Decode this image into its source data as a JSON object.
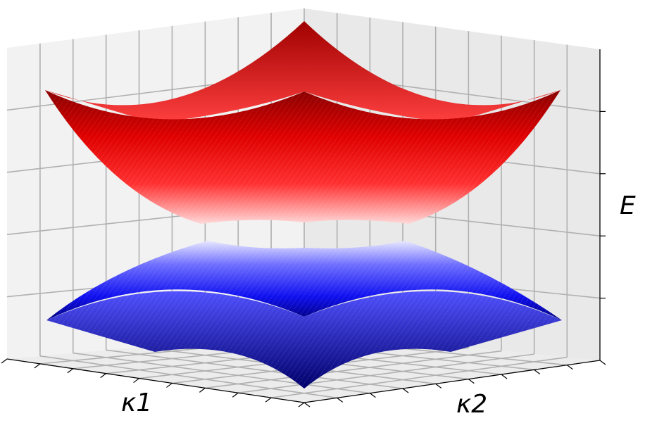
{
  "chart_data": {
    "type": "surface3d",
    "title": "",
    "xlabel": "κ1",
    "ylabel": "κ2",
    "zlabel": "E",
    "x_tick_labels": [],
    "y_tick_labels": [],
    "z_tick_labels": [],
    "grid": true,
    "legend": "none",
    "series": [
      {
        "name": "",
        "color": "#ff0000",
        "shape": "upper band, concave up, minimum at center"
      },
      {
        "name": "",
        "color": "#0000ff",
        "shape": "lower band, concave down, maximum at center"
      }
    ]
  }
}
